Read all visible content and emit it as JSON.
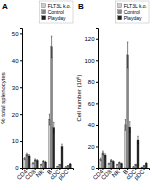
{
  "chart_data": [
    {
      "type": "bar",
      "title": "A",
      "ylabel": "% total splenocytes",
      "categories": [
        "CD4",
        "CD8",
        "NK",
        "B",
        "cDC",
        "pDC"
      ],
      "series": [
        {
          "name": "FLT3L k.o.",
          "color": "#cccccc",
          "values": [
            3.5,
            1.8,
            1.2,
            18.0,
            0.5,
            0.4
          ],
          "errors": [
            0.4,
            0.3,
            0.2,
            2.0,
            0.1,
            0.05
          ]
        },
        {
          "name": "Control",
          "color": "#888888",
          "values": [
            5.0,
            3.0,
            2.5,
            45.0,
            1.2,
            0.8
          ],
          "errors": [
            0.5,
            0.4,
            0.3,
            4.0,
            0.15,
            0.1
          ]
        },
        {
          "name": "Playday",
          "color": "#222222",
          "values": [
            4.5,
            2.8,
            2.2,
            15.0,
            8.0,
            1.5
          ],
          "errors": [
            0.5,
            0.3,
            0.3,
            2.0,
            0.9,
            0.2
          ]
        }
      ],
      "ylim": [
        0,
        52
      ],
      "yticks": [
        0,
        10,
        20,
        30,
        40,
        50
      ],
      "grid": false,
      "legend": "upper right"
    },
    {
      "type": "bar",
      "title": "B",
      "ylabel": "Cell number (10⁶)",
      "categories": [
        "CD4",
        "CD8",
        "NK",
        "B",
        "cDC",
        "pDC"
      ],
      "series": [
        {
          "name": "FLT3L k.o.",
          "color": "#cccccc",
          "values": [
            8,
            4,
            3,
            40,
            1.0,
            0.6
          ],
          "errors": [
            1.2,
            0.6,
            0.4,
            5,
            0.2,
            0.1
          ]
        },
        {
          "name": "Control",
          "color": "#888888",
          "values": [
            14,
            7,
            5,
            105,
            3.0,
            2.0
          ],
          "errors": [
            1.8,
            0.9,
            0.6,
            12,
            0.5,
            0.3
          ]
        },
        {
          "name": "Playday",
          "color": "#222222",
          "values": [
            12,
            6,
            4,
            38,
            26.0,
            4.5
          ],
          "errors": [
            1.2,
            0.7,
            0.5,
            5,
            3.5,
            0.5
          ]
        }
      ],
      "ylim": [
        0,
        130
      ],
      "yticks": [
        0,
        20,
        40,
        60,
        80,
        100,
        120
      ],
      "grid": false,
      "legend": "upper right"
    }
  ]
}
